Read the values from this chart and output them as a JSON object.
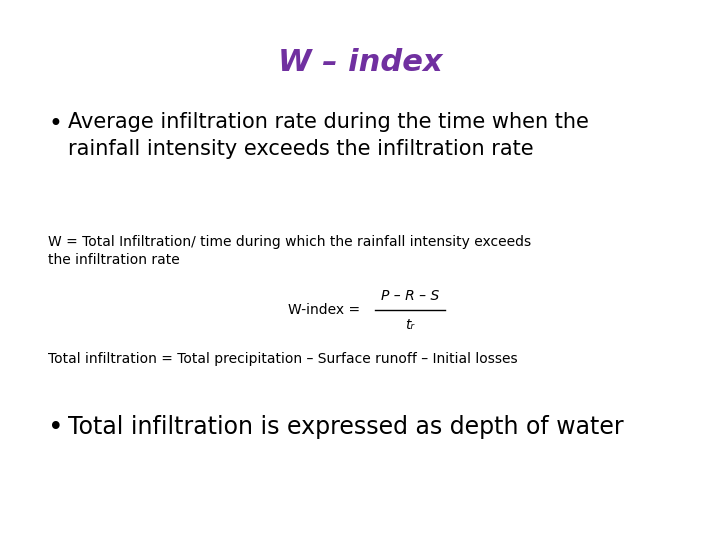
{
  "title": "W – index",
  "title_color": "#7030A0",
  "title_fontsize": 22,
  "title_style": "italic",
  "title_weight": "bold",
  "background_color": "#ffffff",
  "bullet1_text": "Average infiltration rate during the time when the\nrainfall intensity exceeds the infiltration rate",
  "bullet1_fontsize": 15,
  "small_text1": "W = Total Infiltration/ time during which the rainfall intensity exceeds\nthe infiltration rate",
  "small_text1_fontsize": 10,
  "formula_label": "W-index =",
  "formula_numerator": "P – R – S",
  "formula_denominator": "tᵣ",
  "small_text2": "Total infiltration = Total precipitation – Surface runoff – Initial losses",
  "small_text2_fontsize": 10,
  "bullet2_text": "Total infiltration is expressed as depth of water",
  "bullet2_fontsize": 17,
  "bullet_dot_fontsize": 16
}
